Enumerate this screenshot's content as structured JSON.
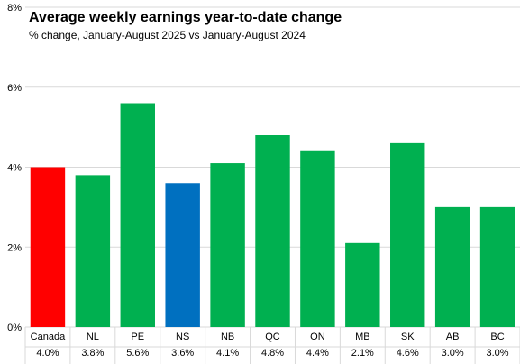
{
  "chart_data": {
    "type": "bar",
    "title": "Average weekly earnings year-to-date change",
    "subtitle": "% change, January-August 2025 vs January-August 2024",
    "xlabel": "",
    "ylabel": "",
    "ylim": [
      0,
      8
    ],
    "yticks": [
      0,
      2,
      4,
      6,
      8
    ],
    "ytick_labels": [
      "0%",
      "2%",
      "4%",
      "6%",
      "8%"
    ],
    "grid": true,
    "legend": "none",
    "categories": [
      "Canada",
      "NL",
      "PE",
      "NS",
      "NB",
      "QC",
      "ON",
      "MB",
      "SK",
      "AB",
      "BC"
    ],
    "values": [
      4.0,
      3.8,
      5.6,
      3.6,
      4.1,
      4.8,
      4.4,
      2.1,
      4.6,
      3.0,
      3.0
    ],
    "value_labels": [
      "4.0%",
      "3.8%",
      "5.6%",
      "3.6%",
      "4.1%",
      "4.8%",
      "4.4%",
      "2.1%",
      "4.6%",
      "3.0%",
      "3.0%"
    ],
    "colors": [
      "#ff0000",
      "#00b050",
      "#00b050",
      "#0070c0",
      "#00b050",
      "#00b050",
      "#00b050",
      "#00b050",
      "#00b050",
      "#00b050",
      "#00b050"
    ]
  }
}
